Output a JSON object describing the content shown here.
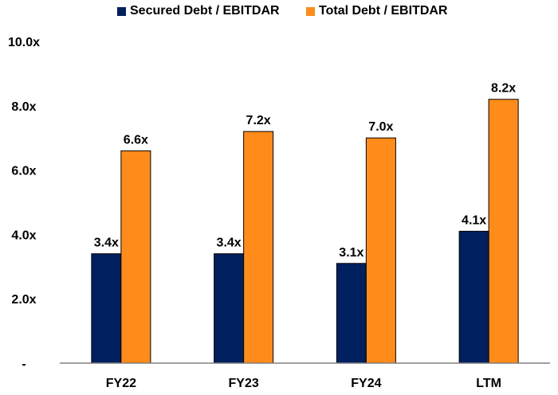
{
  "chart_data": {
    "type": "bar",
    "categories": [
      "FY22",
      "FY23",
      "FY24",
      "LTM"
    ],
    "series": [
      {
        "name": "Secured Debt / EBITDAR",
        "values": [
          3.4,
          3.4,
          3.1,
          4.1
        ],
        "labels": [
          "3.4x",
          "3.4x",
          "3.1x",
          "4.1x"
        ],
        "color": "#002060"
      },
      {
        "name": "Total Debt / EBITDAR",
        "values": [
          6.6,
          7.2,
          7.0,
          8.2
        ],
        "labels": [
          "6.6x",
          "7.2x",
          "7.0x",
          "8.2x"
        ],
        "color": "#FF8C1A"
      }
    ],
    "yticks": [
      0,
      2,
      4,
      6,
      8,
      10
    ],
    "ytick_labels": [
      "-",
      "2.0x",
      "4.0x",
      "6.0x",
      "8.0x",
      "10.0x"
    ],
    "ylim": [
      0,
      10
    ],
    "grid": false,
    "legend": "top-center",
    "title": "",
    "xlabel": "",
    "ylabel": ""
  }
}
